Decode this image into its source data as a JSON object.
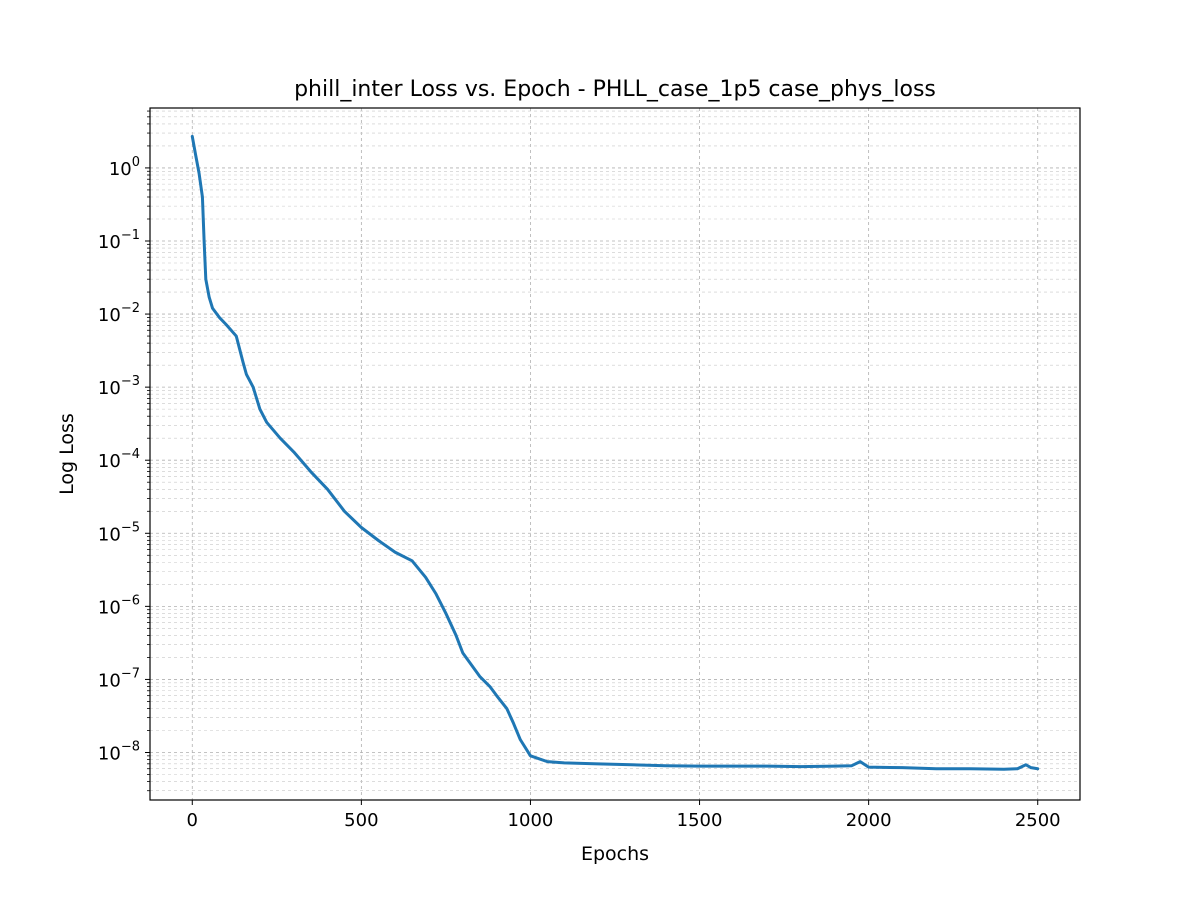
{
  "chart_data": {
    "type": "line",
    "title": "phill_inter Loss vs. Epoch - PHLL_case_1p5 case_phys_loss",
    "xlabel": "Epochs",
    "ylabel": "Log Loss",
    "y_scale": "log",
    "xlim": [
      -125,
      2625
    ],
    "ylim_exp": [
      -8.65,
      0.82
    ],
    "grid": true,
    "line_color": "#1f77b4",
    "x_ticks": [
      {
        "value": 0,
        "label": "0"
      },
      {
        "value": 500,
        "label": "500"
      },
      {
        "value": 1000,
        "label": "1000"
      },
      {
        "value": 1500,
        "label": "1500"
      },
      {
        "value": 2000,
        "label": "2000"
      },
      {
        "value": 2500,
        "label": "2500"
      }
    ],
    "y_ticks": [
      {
        "exp": 0,
        "base": "10",
        "power": "0"
      },
      {
        "exp": -1,
        "base": "10",
        "power": "−1"
      },
      {
        "exp": -2,
        "base": "10",
        "power": "−2"
      },
      {
        "exp": -3,
        "base": "10",
        "power": "−3"
      },
      {
        "exp": -4,
        "base": "10",
        "power": "−4"
      },
      {
        "exp": -5,
        "base": "10",
        "power": "−5"
      },
      {
        "exp": -6,
        "base": "10",
        "power": "−6"
      },
      {
        "exp": -7,
        "base": "10",
        "power": "−7"
      },
      {
        "exp": -8,
        "base": "10",
        "power": "−8"
      }
    ],
    "series": [
      {
        "x": [
          0,
          10,
          20,
          30,
          35,
          40,
          50,
          60,
          80,
          100,
          130,
          150,
          160,
          180,
          200,
          220,
          260,
          300,
          350,
          400,
          450,
          500,
          550,
          600,
          650,
          690,
          720,
          750,
          780,
          800,
          850,
          880,
          900,
          930,
          950,
          970,
          1000,
          1050,
          1100,
          1200,
          1300,
          1400,
          1500,
          1600,
          1700,
          1800,
          1900,
          1950,
          1975,
          2000,
          2100,
          2200,
          2300,
          2400,
          2440,
          2465,
          2480,
          2500
        ],
        "y": [
          2.7,
          1.5,
          0.85,
          0.4,
          0.1,
          0.03,
          0.017,
          0.012,
          0.009,
          0.0072,
          0.005,
          0.0022,
          0.0015,
          0.001,
          0.0005,
          0.00033,
          0.0002,
          0.00013,
          7e-05,
          4e-05,
          2e-05,
          1.2e-05,
          8e-06,
          5.5e-06,
          4.2e-06,
          2.5e-06,
          1.5e-06,
          8e-07,
          4e-07,
          2.3e-07,
          1.1e-07,
          8e-08,
          6e-08,
          4e-08,
          2.5e-08,
          1.5e-08,
          9e-09,
          7.5e-09,
          7.2e-09,
          7e-09,
          6.8e-09,
          6.6e-09,
          6.5e-09,
          6.5e-09,
          6.5e-09,
          6.4e-09,
          6.5e-09,
          6.6e-09,
          7.5e-09,
          6.3e-09,
          6.2e-09,
          6e-09,
          6e-09,
          5.9e-09,
          6e-09,
          6.8e-09,
          6.2e-09,
          6e-09
        ]
      }
    ]
  }
}
